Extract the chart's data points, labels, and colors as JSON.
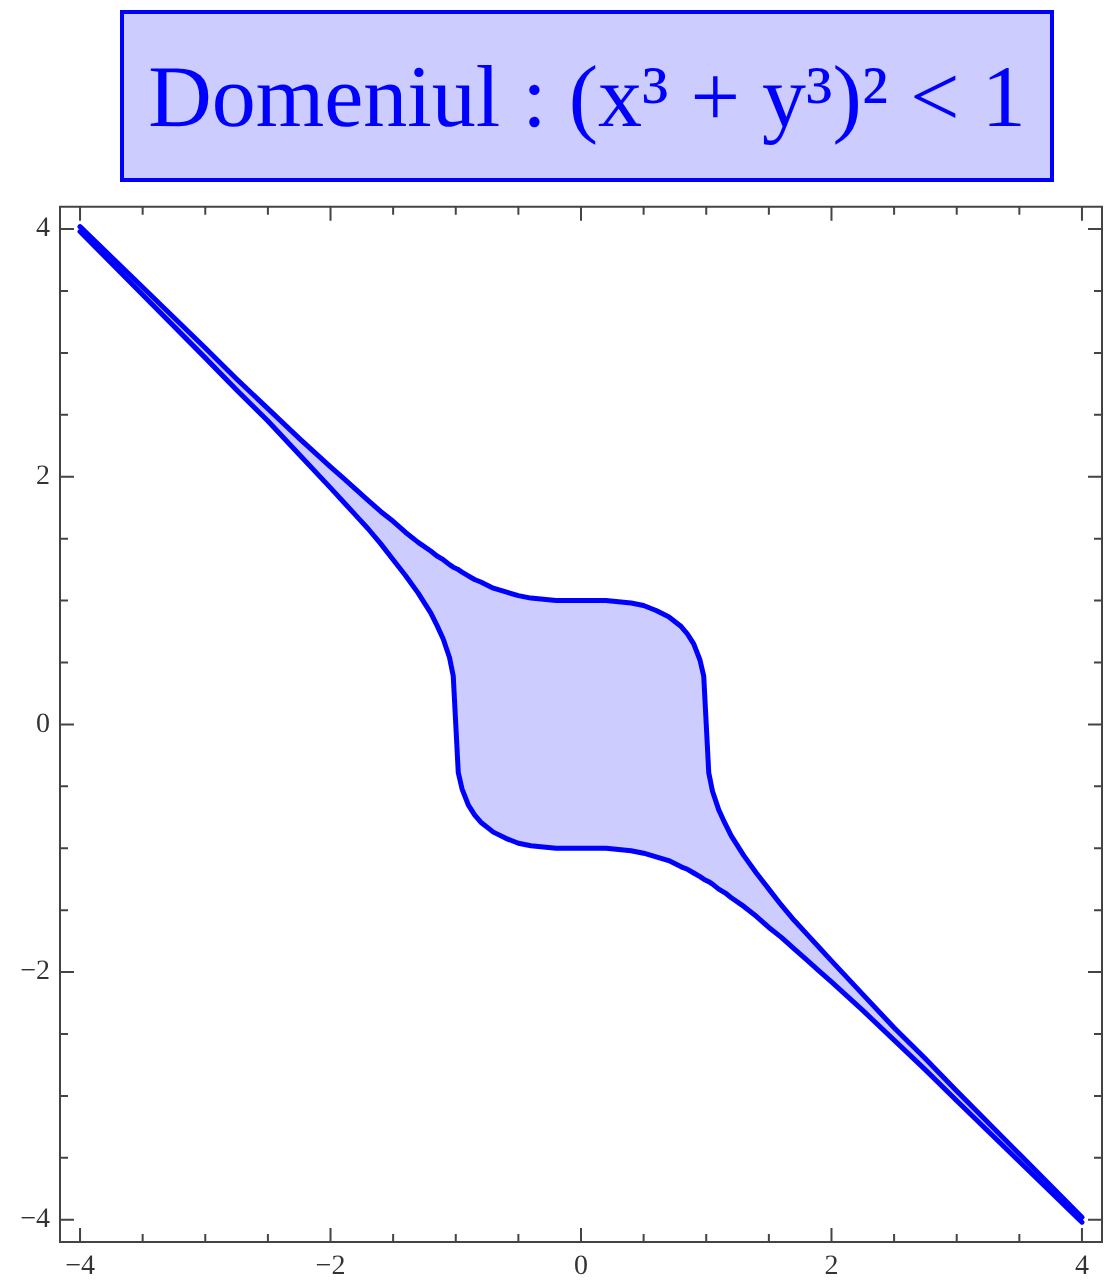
{
  "chart_data": {
    "type": "line",
    "title": "Domeniul : (x³ + y³)² < 1",
    "series": [
      {
        "color": "#0000ff",
        "x": [
          -4,
          -3.5,
          -3,
          -2.75,
          -2.5,
          -2.25,
          -2,
          -1.9,
          -1.8,
          -1.7,
          -1.6,
          -1.5,
          -1.4,
          -1.3,
          -1.2,
          -1.15,
          -1.1,
          -1.05,
          -1.02,
          -1,
          -0.98,
          -0.95,
          -0.9,
          -0.85,
          -0.8,
          -0.7,
          -0.6,
          -0.5,
          -0.4,
          -0.3,
          -0.2,
          0,
          0.2,
          0.3,
          0.4,
          0.5,
          0.6,
          0.7,
          0.8,
          0.85,
          0.9,
          0.95,
          0.98,
          1,
          1.02,
          1.05,
          1.1,
          1.15,
          1.2,
          1.3,
          1.4,
          1.5,
          1.6,
          1.7,
          1.8,
          1.9,
          2,
          2.25,
          2.5,
          2.75,
          3,
          3.5,
          4
        ],
        "values": [
          4.02,
          3.53,
          3.04,
          2.79,
          2.55,
          2.31,
          2.08,
          1.99,
          1.9,
          1.81,
          1.72,
          1.64,
          1.55,
          1.47,
          1.4,
          1.36,
          1.33,
          1.29,
          1.27,
          1.26,
          1.25,
          1.23,
          1.2,
          1.17,
          1.15,
          1.1,
          1.07,
          1.04,
          1.02,
          1.01,
          1,
          1,
          1,
          0.99,
          0.98,
          0.96,
          0.92,
          0.87,
          0.79,
          0.73,
          0.65,
          0.52,
          0.39,
          0,
          -0.39,
          -0.54,
          -0.69,
          -0.8,
          -0.9,
          -1.06,
          -1.2,
          -1.33,
          -1.46,
          -1.58,
          -1.69,
          -1.8,
          -1.91,
          -2.18,
          -2.45,
          -2.7,
          -2.96,
          -3.47,
          -3.98
        ],
        "lower": [
          3.98,
          3.47,
          2.96,
          2.7,
          2.45,
          2.18,
          1.91,
          1.8,
          1.69,
          1.58,
          1.46,
          1.33,
          1.2,
          1.06,
          0.9,
          0.8,
          0.69,
          0.54,
          0.39,
          0,
          -0.39,
          -0.52,
          -0.65,
          -0.73,
          -0.79,
          -0.87,
          -0.92,
          -0.96,
          -0.98,
          -0.99,
          -1,
          -1,
          -1,
          -1.01,
          -1.02,
          -1.04,
          -1.07,
          -1.1,
          -1.15,
          -1.17,
          -1.2,
          -1.23,
          -1.25,
          -1.26,
          -1.27,
          -1.29,
          -1.33,
          -1.36,
          -1.4,
          -1.47,
          -1.55,
          -1.64,
          -1.72,
          -1.81,
          -1.9,
          -1.99,
          -2.08,
          -2.31,
          -2.55,
          -2.79,
          -3.04,
          -3.53,
          -4.02
        ],
        "upper": [
          4.02,
          3.53,
          3.04,
          2.79,
          2.55,
          2.31,
          2.08,
          1.99,
          1.9,
          1.81,
          1.72,
          1.64,
          1.55,
          1.47,
          1.4,
          1.36,
          1.33,
          1.29,
          1.27,
          1.26,
          1.25,
          1.23,
          1.2,
          1.17,
          1.15,
          1.1,
          1.07,
          1.04,
          1.02,
          1.01,
          1,
          1,
          1,
          0.99,
          0.98,
          0.96,
          0.92,
          0.87,
          0.79,
          0.73,
          0.65,
          0.52,
          0.39,
          0,
          -0.39,
          -0.54,
          -0.69,
          -0.8,
          -0.9,
          -1.06,
          -1.2,
          -1.33,
          -1.46,
          -1.58,
          -1.69,
          -1.8,
          -1.91,
          -2.18,
          -2.45,
          -2.7,
          -2.96,
          -3.47,
          -3.98
        ]
      },
      {
        "color": "#0000ff",
        "x": [
          -4,
          -3.5,
          -3,
          -2.75,
          -2.5,
          -2.25,
          -2,
          -1.9,
          -1.8,
          -1.7,
          -1.6,
          -1.5,
          -1.4,
          -1.3,
          -1.2,
          -1.15,
          -1.1,
          -1.05,
          -1.02,
          -1,
          -0.98,
          -0.95,
          -0.9,
          -0.85,
          -0.8,
          -0.7,
          -0.6,
          -0.5,
          -0.4,
          -0.3,
          -0.2,
          0,
          0.2,
          0.3,
          0.4,
          0.5,
          0.6,
          0.7,
          0.8,
          0.85,
          0.9,
          0.95,
          0.98,
          1,
          1.02,
          1.05,
          1.1,
          1.15,
          1.2,
          1.3,
          1.4,
          1.5,
          1.6,
          1.7,
          1.8,
          1.9,
          2,
          2.25,
          2.5,
          2.75,
          3,
          3.5,
          4
        ],
        "values": [
          3.98,
          3.47,
          2.96,
          2.7,
          2.45,
          2.18,
          1.91,
          1.8,
          1.69,
          1.58,
          1.46,
          1.33,
          1.2,
          1.06,
          0.9,
          0.8,
          0.69,
          0.54,
          0.39,
          0,
          -0.39,
          -0.52,
          -0.65,
          -0.73,
          -0.79,
          -0.87,
          -0.92,
          -0.96,
          -0.98,
          -0.99,
          -1,
          -1,
          -1,
          -1.01,
          -1.02,
          -1.04,
          -1.07,
          -1.1,
          -1.15,
          -1.17,
          -1.2,
          -1.23,
          -1.25,
          -1.26,
          -1.27,
          -1.29,
          -1.33,
          -1.36,
          -1.4,
          -1.47,
          -1.55,
          -1.64,
          -1.72,
          -1.81,
          -1.9,
          -1.99,
          -2.08,
          -2.31,
          -2.55,
          -2.79,
          -3.04,
          -3.53,
          -4.02
        ]
      }
    ],
    "xlim": [
      -4.16,
      4.16
    ],
    "ylim": [
      -4.18,
      4.18
    ],
    "xticks": [
      {
        "value": -4,
        "label": "−4"
      },
      {
        "value": -3.5,
        "label": null
      },
      {
        "value": -3,
        "label": null
      },
      {
        "value": -2.5,
        "label": null
      },
      {
        "value": -2,
        "label": "−2"
      },
      {
        "value": -1.5,
        "label": null
      },
      {
        "value": -1,
        "label": null
      },
      {
        "value": -0.5,
        "label": null
      },
      0,
      {
        "value": 0.5,
        "label": null
      },
      {
        "value": 1,
        "label": null
      },
      {
        "value": 1.5,
        "label": null
      },
      2,
      {
        "value": 2.5,
        "label": null
      },
      {
        "value": 3,
        "label": null
      },
      {
        "value": 3.5,
        "label": null
      },
      4
    ],
    "yticks": [
      {
        "value": -4,
        "label": "−4"
      },
      {
        "value": -3.5,
        "label": null
      },
      {
        "value": -3,
        "label": null
      },
      {
        "value": -2.5,
        "label": null
      },
      {
        "value": -2,
        "label": "−2"
      },
      {
        "value": -1.5,
        "label": null
      },
      {
        "value": -1,
        "label": null
      },
      {
        "value": -0.5,
        "label": null
      },
      0,
      {
        "value": 0.5,
        "label": null
      },
      {
        "value": 1,
        "label": null
      },
      {
        "value": 1.5,
        "label": null
      },
      2,
      {
        "value": 2.5,
        "label": null
      },
      {
        "value": 3,
        "label": null
      },
      {
        "value": 3.5,
        "label": null
      },
      4
    ]
  }
}
